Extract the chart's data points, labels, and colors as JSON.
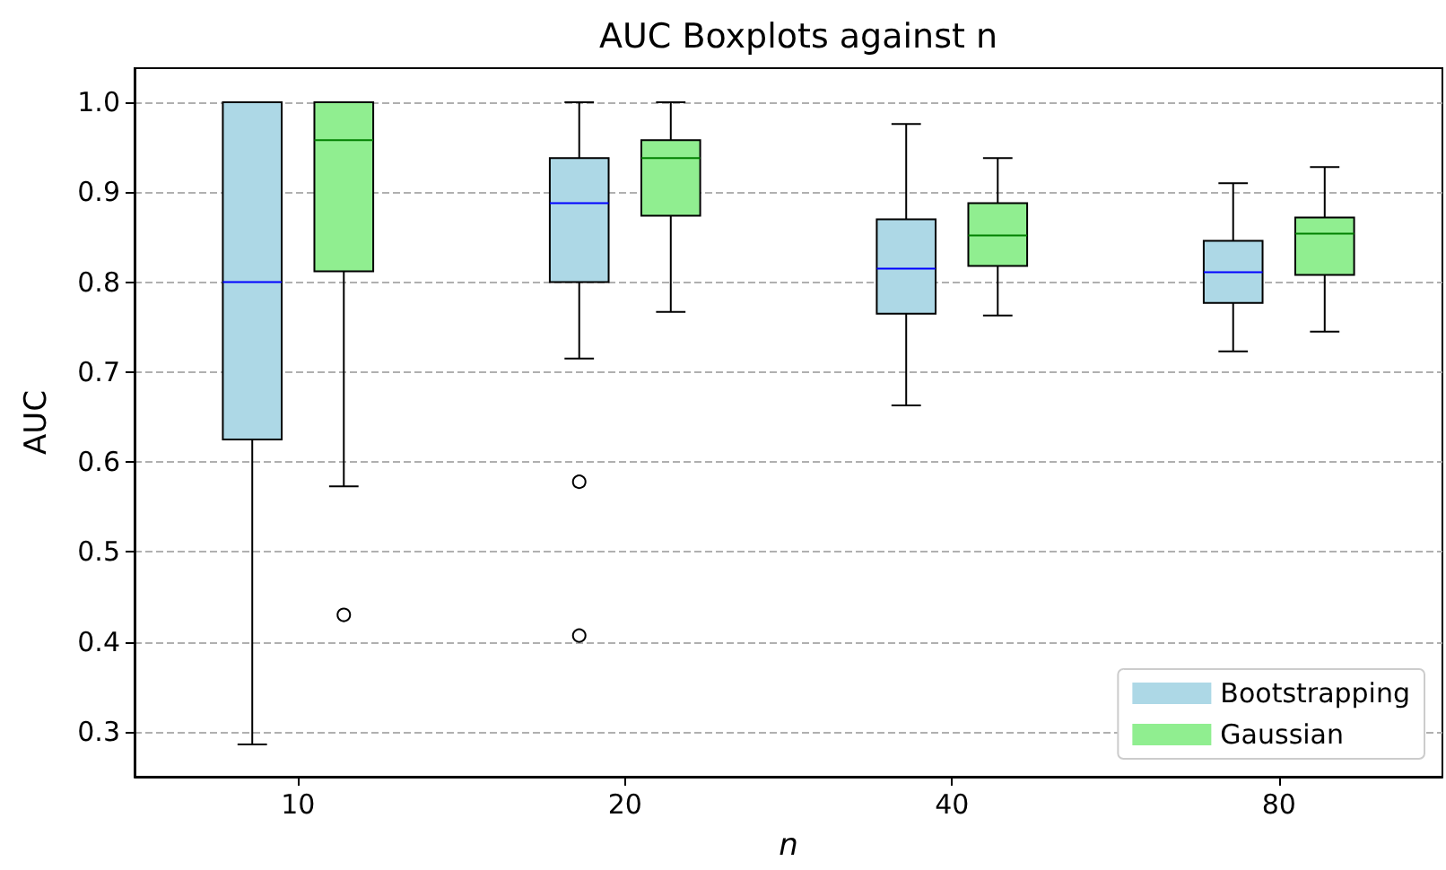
{
  "chart_data": {
    "type": "box",
    "title": "AUC Boxplots against n",
    "xlabel": "n",
    "ylabel": "AUC",
    "categories": [
      "10",
      "20",
      "40",
      "80"
    ],
    "ylim": [
      0.25,
      1.038
    ],
    "yticks": [
      0.3,
      0.4,
      0.5,
      0.6,
      0.7,
      0.8,
      0.9,
      {
        "value": 1,
        "label": "1.0"
      }
    ],
    "grid": "y",
    "legend": "bottom right",
    "series": [
      {
        "name": "Bootstrapping",
        "color": "#add8e6",
        "boxes": [
          {
            "low": 0.286,
            "q1": 0.625,
            "median": 0.8,
            "q3": 1.0,
            "high": 1.0
          },
          {
            "low": 0.715,
            "q1": 0.8,
            "median": 0.888,
            "q3": 0.938,
            "high": 1.0,
            "outliers": [
              0.578,
              0.407
            ]
          },
          {
            "low": 0.663,
            "q1": 0.765,
            "median": 0.815,
            "q3": 0.87,
            "high": 0.976
          },
          {
            "low": 0.723,
            "q1": 0.777,
            "median": 0.811,
            "q3": 0.846,
            "high": 0.91
          }
        ]
      },
      {
        "name": "Gaussian",
        "color": "#90ee90",
        "boxes": [
          {
            "low": 0.573,
            "q1": 0.812,
            "median": 0.958,
            "q3": 1.0,
            "high": 1.0,
            "outliers": [
              0.43
            ]
          },
          {
            "low": 0.767,
            "q1": 0.874,
            "median": 0.938,
            "q3": 0.958,
            "high": 1.0
          },
          {
            "low": 0.763,
            "q1": 0.818,
            "median": 0.852,
            "q3": 0.888,
            "high": 0.938
          },
          {
            "low": 0.745,
            "q1": 0.808,
            "median": 0.854,
            "q3": 0.872,
            "high": 0.928
          }
        ]
      }
    ]
  }
}
